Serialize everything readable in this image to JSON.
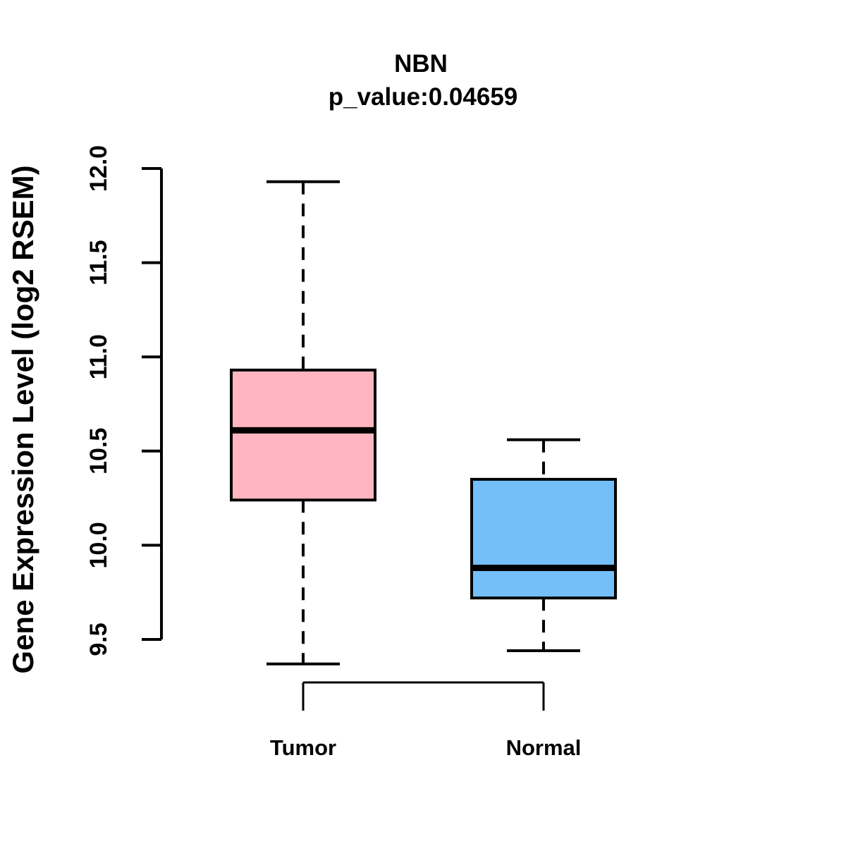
{
  "chart_data": {
    "type": "boxplot",
    "title": "NBN",
    "subtitle": "p_value:0.04659",
    "ylabel": "Gene Expression Level (log2 RSEM)",
    "xlabel": "",
    "categories": [
      "Tumor",
      "Normal"
    ],
    "yticks": [
      "9.5",
      "10.0",
      "10.5",
      "11.0",
      "11.5",
      "12.0"
    ],
    "ylim": [
      9.5,
      12.0
    ],
    "grid": false,
    "whisker_line_style": "dashed",
    "series": [
      {
        "name": "Tumor",
        "whisker_low": 9.37,
        "q1": 10.24,
        "median": 10.61,
        "q3": 10.93,
        "whisker_high": 11.93,
        "color": "#FFB6C1"
      },
      {
        "name": "Normal",
        "whisker_low": 9.44,
        "q1": 9.72,
        "median": 9.88,
        "q3": 10.35,
        "whisker_high": 10.56,
        "color": "#74BFF7"
      }
    ],
    "colors": {
      "tumor_box": "#FFB6C1",
      "normal_box": "#74BFF7",
      "line": "#000000",
      "background": "#FFFFFF"
    }
  }
}
